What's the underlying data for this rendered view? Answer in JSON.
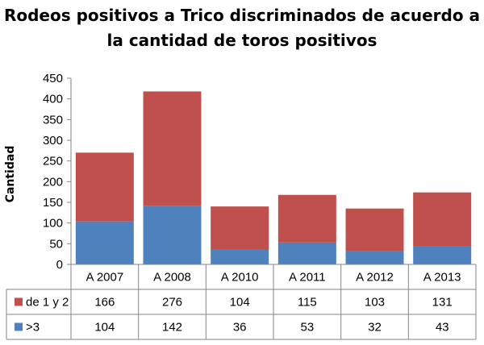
{
  "chart_data": {
    "type": "bar",
    "stacked": true,
    "title_lines": [
      "Rodeos positivos a Trico discriminados  de acuerdo a",
      "la cantidad de toros positivos"
    ],
    "xlabel": "",
    "ylabel": "Cantidad",
    "ylim": [
      0,
      450
    ],
    "yticks": [
      0,
      50,
      100,
      150,
      200,
      250,
      300,
      350,
      400,
      450
    ],
    "grid": false,
    "legend_placement": "data-table-left",
    "categories": [
      "A 2007",
      "A 2008",
      "A 2010",
      "A 2011",
      "A 2012",
      "A 2013"
    ],
    "series": [
      {
        "name": ">3",
        "color": "#4F81BD",
        "values": [
          104,
          142,
          36,
          53,
          32,
          43
        ]
      },
      {
        "name": "de 1 y 2",
        "color": "#C0504D",
        "values": [
          166,
          276,
          104,
          115,
          103,
          131
        ]
      }
    ],
    "table_row_order": [
      1,
      0
    ]
  }
}
